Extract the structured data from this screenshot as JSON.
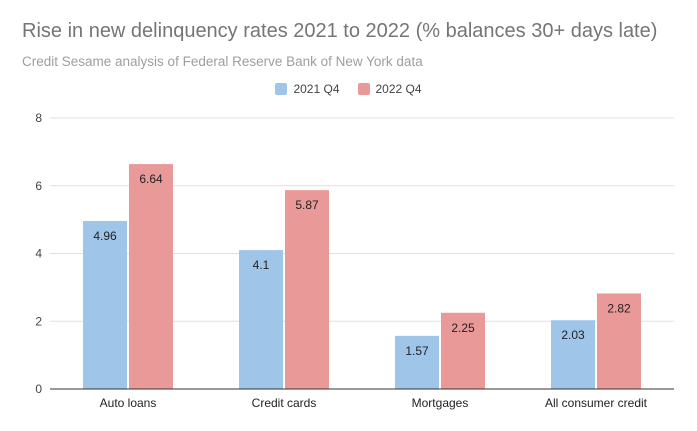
{
  "title": "Rise in new delinquency rates 2021 to 2022 (% balances 30+ days late)",
  "subtitle": "Credit Sesame analysis of Federal Reserve Bank of New York data",
  "colors": {
    "series_2021": "#9fc5e8",
    "series_2022": "#ea9999",
    "grid": "#e0e0e0",
    "axis": "#333333"
  },
  "chart_data": {
    "type": "bar",
    "title": "Rise in new delinquency rates 2021 to 2022 (% balances 30+ days late)",
    "categories": [
      "Auto loans",
      "Credit cards",
      "Mortgages",
      "All consumer credit"
    ],
    "series": [
      {
        "name": "2021 Q4",
        "values": [
          4.96,
          4.1,
          1.57,
          2.03
        ],
        "labels": [
          "4.96",
          "4.1",
          "1.57",
          "2.03"
        ]
      },
      {
        "name": "2022 Q4",
        "values": [
          6.64,
          5.87,
          2.25,
          2.82
        ],
        "labels": [
          "6.64",
          "5.87",
          "2.25",
          "2.82"
        ]
      }
    ],
    "yticks": [
      "0",
      "2",
      "4",
      "6",
      "8"
    ],
    "ylim": [
      0,
      8
    ],
    "grid": true,
    "legend": "top-center"
  }
}
